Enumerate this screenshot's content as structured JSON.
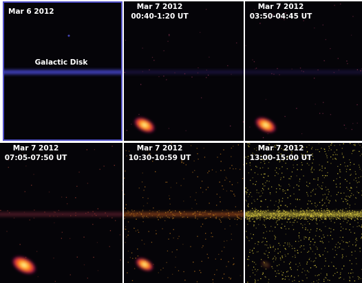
{
  "panels": [
    {
      "date": "Mar 6 2012",
      "annotation": "Galactic Disk"
    },
    {
      "date": "Mar 7 2012",
      "time": "00:40-1:20 UT"
    },
    {
      "date": "Mar 7 2012",
      "time": "03:50-04:45 UT"
    },
    {
      "date": "Mar 7 2012",
      "time": "07:05-07:50 UT"
    },
    {
      "date": "Mar 7 2012",
      "time": "10:30-10:59 UT"
    },
    {
      "date": "Mar 7 2012",
      "time": "13:00-15:00 UT"
    }
  ]
}
